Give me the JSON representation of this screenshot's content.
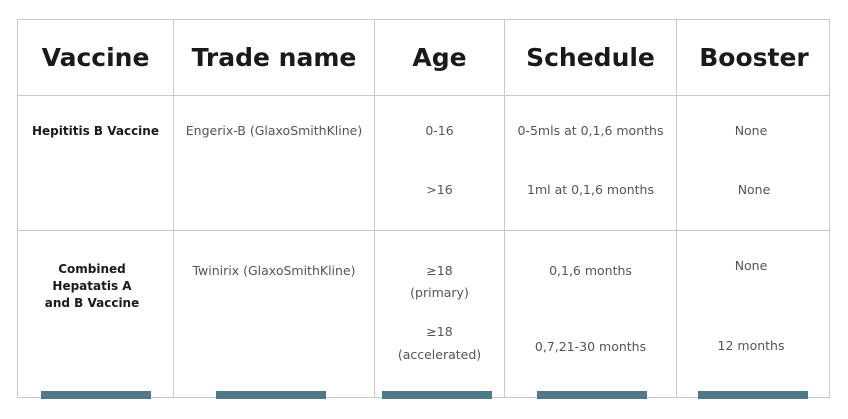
{
  "headers": [
    "Vaccine",
    "Trade name",
    "Age",
    "Schedule",
    "Booster"
  ],
  "rows": [
    {
      "vaccine": "Hepititis B Vaccine",
      "trade_name": "Engerix-B (GlaxoSmithKline)",
      "entries": [
        {
          "age": "0-16",
          "schedule": "0-5mls at 0,1,6 months",
          "booster": "None"
        },
        {
          "age": ">16",
          "schedule": "1ml at 0,1,6 months",
          "booster": "None"
        }
      ]
    },
    {
      "vaccine_lines": [
        "Combined",
        "Hepatatis A",
        "and B Vaccine"
      ],
      "trade_name": "Twinirix (GlaxoSmithKline)",
      "entries": [
        {
          "age_lines": [
            "≥18",
            "(primary)"
          ],
          "schedule": "0,1,6 months",
          "booster": "None"
        },
        {
          "age_lines": [
            "≥18",
            "(accelerated)"
          ],
          "schedule": "0,7,21-30 months",
          "booster": "12 months"
        }
      ]
    }
  ],
  "colors": {
    "border": "#c9c9c9",
    "accent_bar": "#4e7a89",
    "header_text": "#1a1a1a"
  }
}
